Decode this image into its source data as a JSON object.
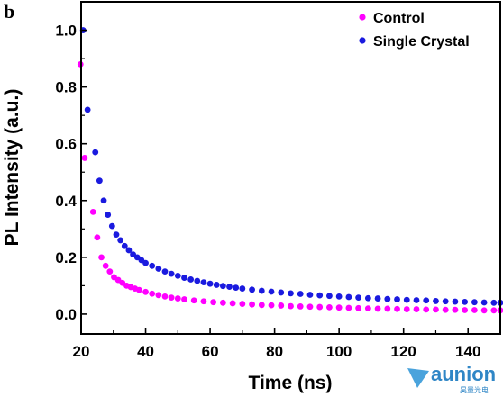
{
  "panel_label": "b",
  "watermark": {
    "text": "aunion",
    "sub": "昊量光电",
    "color": "#2f86c6"
  },
  "chart_data": {
    "type": "scatter",
    "title": "",
    "xlabel": "Time (ns)",
    "ylabel": "PL Intensity (a.u.)",
    "xlim": [
      20,
      150
    ],
    "ylim": [
      -0.07,
      1.1
    ],
    "xticks": [
      20,
      40,
      60,
      80,
      100,
      120,
      140
    ],
    "yticks": [
      0.0,
      0.2,
      0.4,
      0.6,
      0.8,
      1.0
    ],
    "grid": false,
    "legend_position": "top-right",
    "series": [
      {
        "name": "Control",
        "color": "#ff00ff",
        "x": [
          19.8,
          21.1,
          23.7,
          25.0,
          26.3,
          27.6,
          28.9,
          30.2,
          31.5,
          32.8,
          34.1,
          35.4,
          36.7,
          38.0,
          40.0,
          42.0,
          44.0,
          46.0,
          48.0,
          50.0,
          52.0,
          55.0,
          58.0,
          61.0,
          64.0,
          67.0,
          70.0,
          73.0,
          76.0,
          79.0,
          82.0,
          85.0,
          88.0,
          91.0,
          94.0,
          97.0,
          100.0,
          103.0,
          106.0,
          109.0,
          112.0,
          115.0,
          118.0,
          121.0,
          124.0,
          127.0,
          130.0,
          133.0,
          136.0,
          139.0,
          142.0,
          145.0,
          148.0,
          150.0
        ],
        "y": [
          0.88,
          0.55,
          0.36,
          0.27,
          0.2,
          0.17,
          0.15,
          0.13,
          0.12,
          0.11,
          0.1,
          0.095,
          0.09,
          0.085,
          0.078,
          0.072,
          0.067,
          0.062,
          0.058,
          0.055,
          0.052,
          0.048,
          0.045,
          0.042,
          0.04,
          0.038,
          0.036,
          0.034,
          0.032,
          0.031,
          0.03,
          0.028,
          0.027,
          0.026,
          0.025,
          0.024,
          0.023,
          0.022,
          0.021,
          0.02,
          0.019,
          0.019,
          0.018,
          0.017,
          0.017,
          0.016,
          0.016,
          0.015,
          0.015,
          0.014,
          0.014,
          0.013,
          0.013,
          0.013
        ]
      },
      {
        "name": "Single Crystal",
        "color": "#1a1adf",
        "x": [
          20.6,
          22.0,
          24.4,
          25.7,
          27.0,
          28.3,
          29.6,
          30.9,
          32.2,
          33.5,
          34.8,
          36.1,
          37.4,
          38.7,
          40.0,
          42.0,
          44.0,
          46.0,
          48.0,
          50.0,
          52.0,
          54.0,
          56.0,
          58.0,
          60.0,
          62.0,
          64.0,
          66.0,
          68.0,
          70.0,
          73.0,
          76.0,
          79.0,
          82.0,
          85.0,
          88.0,
          91.0,
          94.0,
          97.0,
          100.0,
          103.0,
          106.0,
          109.0,
          112.0,
          115.0,
          118.0,
          121.0,
          124.0,
          127.0,
          130.0,
          133.0,
          136.0,
          139.0,
          142.0,
          145.0,
          148.0,
          150.0
        ],
        "y": [
          1.0,
          0.72,
          0.57,
          0.47,
          0.4,
          0.35,
          0.31,
          0.28,
          0.26,
          0.24,
          0.225,
          0.21,
          0.2,
          0.19,
          0.18,
          0.17,
          0.16,
          0.15,
          0.142,
          0.135,
          0.128,
          0.122,
          0.117,
          0.112,
          0.107,
          0.103,
          0.099,
          0.096,
          0.093,
          0.09,
          0.086,
          0.082,
          0.079,
          0.076,
          0.073,
          0.071,
          0.068,
          0.066,
          0.064,
          0.062,
          0.06,
          0.058,
          0.056,
          0.055,
          0.053,
          0.052,
          0.05,
          0.049,
          0.048,
          0.046,
          0.045,
          0.044,
          0.043,
          0.042,
          0.041,
          0.04,
          0.04
        ]
      }
    ]
  }
}
